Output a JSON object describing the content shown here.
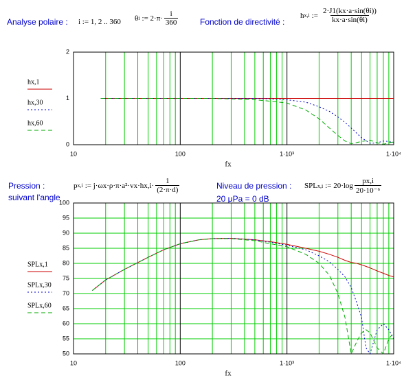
{
  "header": {
    "left_label": "Analyse polaire :",
    "range": "i := 1, 2 .. 360",
    "theta": {
      "lhs": "θ",
      "sub": "i",
      "op": ":= 2·π·",
      "num": "i",
      "den": "360"
    },
    "right_label": "Fonction de directivité :",
    "h": {
      "lhs": "h",
      "sub": "x,i",
      "op": ":=",
      "num": "2·J1(kx·a·sin(θi))",
      "den": "kx·a·sin(θi)"
    }
  },
  "middle": {
    "pressure_label": [
      "Pression :",
      "suivant l'angle"
    ],
    "p": {
      "lhs": "p",
      "sub": "x,i",
      "op": ":= j·ωx·ρ·π·a²·vx·hx,i·",
      "num": "1",
      "den": "(2·π·d)"
    },
    "level_label": "Niveau de pression :",
    "reference": "20 μPa = 0 dB",
    "spl": {
      "lhs": "SPL",
      "sub": "x,i",
      "op": ":= 20·log",
      "num": "px,i",
      "den": "20·10⁻⁶"
    }
  },
  "chart_data": [
    {
      "type": "line",
      "xlabel": "fx",
      "xscale": "log",
      "xlim": [
        10,
        10000
      ],
      "xticks": [
        10,
        100,
        {
          "value": 1000,
          "label": "1·10³"
        },
        {
          "value": 10000,
          "label": "1·10⁴"
        }
      ],
      "xgrid": [
        20,
        30,
        40,
        50,
        60,
        70,
        80,
        90,
        200,
        300,
        400,
        500,
        600,
        700,
        800,
        900,
        2000,
        3000,
        4000,
        5000,
        6000,
        7000,
        8000,
        9000
      ],
      "ylim": [
        0,
        2
      ],
      "yticks": [
        0,
        1,
        2
      ],
      "ygrid": false,
      "legend": "left",
      "x": [
        18,
        50,
        100,
        200,
        300,
        500,
        700,
        1000,
        1500,
        2000,
        2500,
        3000,
        3500,
        4000,
        5000,
        6000,
        7000,
        8000,
        9000,
        10000
      ],
      "series": [
        {
          "name": "hx,1",
          "color": "#cc0000",
          "dash": "solid",
          "values": [
            1,
            1,
            1,
            1,
            1,
            1,
            1,
            1,
            1,
            1,
            1,
            1,
            1,
            1,
            1,
            1,
            1,
            1,
            1,
            1
          ]
        },
        {
          "name": "hx,30",
          "color": "#0000cc",
          "dash": "dotted",
          "values": [
            1,
            1,
            1,
            1,
            1,
            1,
            0.99,
            0.97,
            0.92,
            0.82,
            0.72,
            0.6,
            0.48,
            0.36,
            0.15,
            0.03,
            0.04,
            0.08,
            0.07,
            0.04
          ]
        },
        {
          "name": "hx,60",
          "color": "#00aa00",
          "dash": "dashed",
          "values": [
            1,
            1,
            1,
            1,
            0.99,
            0.97,
            0.94,
            0.9,
            0.75,
            0.56,
            0.36,
            0.2,
            0.08,
            0.02,
            0.07,
            0.1,
            0.04,
            0.01,
            0.04,
            0.06
          ]
        }
      ]
    },
    {
      "type": "line",
      "xlabel": "fx",
      "xscale": "log",
      "xlim": [
        10,
        10000
      ],
      "xticks": [
        10,
        100,
        {
          "value": 1000,
          "label": "1·10³"
        },
        {
          "value": 10000,
          "label": "1·10⁴"
        }
      ],
      "xgrid": [
        20,
        30,
        40,
        50,
        60,
        70,
        80,
        90,
        200,
        300,
        400,
        500,
        600,
        700,
        800,
        900,
        2000,
        3000,
        4000,
        5000,
        6000,
        7000,
        8000,
        9000
      ],
      "ylim": [
        50,
        100
      ],
      "yticks": [
        50,
        55,
        60,
        65,
        70,
        75,
        80,
        85,
        90,
        95,
        100
      ],
      "ygrid": true,
      "legend": "left",
      "x": [
        15,
        20,
        30,
        50,
        70,
        100,
        150,
        200,
        300,
        500,
        700,
        1000,
        1500,
        2000,
        2500,
        3000,
        3500,
        4000,
        4500,
        5000,
        5500,
        6000,
        7000,
        8000,
        9000,
        10000
      ],
      "series": [
        {
          "name": "SPLx,1",
          "color": "#cc0000",
          "dash": "solid",
          "values": [
            71,
            74.5,
            78,
            82,
            84.5,
            86.5,
            87.8,
            88.2,
            88.3,
            87.8,
            87.2,
            86.3,
            85,
            84,
            83,
            82,
            81,
            80.3,
            80,
            79.5,
            79,
            78.5,
            77.5,
            76.7,
            76,
            75.5
          ]
        },
        {
          "name": "SPLx,30",
          "color": "#0000cc",
          "dash": "dotted",
          "values": [
            71,
            74.5,
            78,
            82,
            84.5,
            86.5,
            87.8,
            88.2,
            88.3,
            87.8,
            87,
            86,
            84.5,
            82.5,
            80.5,
            78,
            75.5,
            72,
            67,
            62,
            52,
            50,
            58,
            60,
            58,
            55
          ]
        },
        {
          "name": "SPLx,60",
          "color": "#00aa00",
          "dash": "dashed",
          "values": [
            71,
            74.5,
            78,
            82,
            84.5,
            86.5,
            87.8,
            88.2,
            88.2,
            87.5,
            86.5,
            85.5,
            83,
            80,
            76,
            70,
            62,
            50,
            54,
            57,
            58,
            57,
            52,
            50,
            55,
            57
          ]
        }
      ]
    }
  ]
}
